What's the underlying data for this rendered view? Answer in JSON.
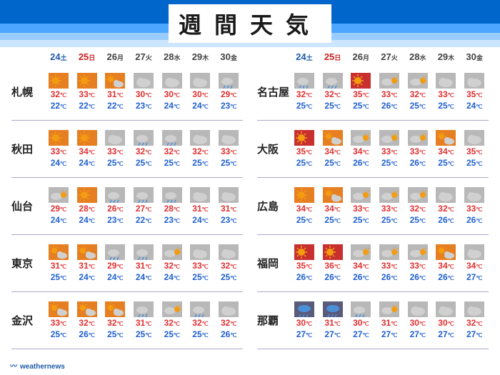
{
  "header": {
    "title": "週間天気"
  },
  "footer": {
    "brand": "weathernews"
  },
  "palette": {
    "sun_fill": "#f39c12",
    "sun_bg": "#e67e22",
    "cloud_fill": "#d0d0d0",
    "cloud_bg": "#b8b8b8",
    "rain_fill": "#4a90d9",
    "rain_bg": "#5a5a7a",
    "hot_bg": "#c83030"
  },
  "days": [
    {
      "num": "24",
      "sub": "土",
      "cls": "sat"
    },
    {
      "num": "25",
      "sub": "日",
      "cls": "sun"
    },
    {
      "num": "26",
      "sub": "月",
      "cls": "wd"
    },
    {
      "num": "27",
      "sub": "火",
      "cls": "wd"
    },
    {
      "num": "28",
      "sub": "水",
      "cls": "wd"
    },
    {
      "num": "29",
      "sub": "木",
      "cls": "wd"
    },
    {
      "num": "30",
      "sub": "金",
      "cls": "wd"
    }
  ],
  "columns": [
    {
      "cities": [
        {
          "name": "札幌",
          "fc": [
            {
              "ic": "sun",
              "hi": 32,
              "lo": 22
            },
            {
              "ic": "sun",
              "hi": 33,
              "lo": 22
            },
            {
              "ic": "sun-cloud",
              "hi": 31,
              "lo": 22
            },
            {
              "ic": "cloud",
              "hi": 30,
              "lo": 23
            },
            {
              "ic": "cloud",
              "hi": 30,
              "lo": 24
            },
            {
              "ic": "cloud",
              "hi": 30,
              "lo": 24
            },
            {
              "ic": "cloud-rain",
              "hi": 29,
              "lo": 23
            }
          ]
        },
        {
          "name": "秋田",
          "fc": [
            {
              "ic": "sun",
              "hi": 33,
              "lo": 24
            },
            {
              "ic": "sun",
              "hi": 34,
              "lo": 24
            },
            {
              "ic": "cloud",
              "hi": 33,
              "lo": 25
            },
            {
              "ic": "cloud-rain",
              "hi": 32,
              "lo": 25
            },
            {
              "ic": "cloud-rain",
              "hi": 32,
              "lo": 25
            },
            {
              "ic": "cloud",
              "hi": 32,
              "lo": 25
            },
            {
              "ic": "cloud",
              "hi": 33,
              "lo": 25
            }
          ]
        },
        {
          "name": "仙台",
          "fc": [
            {
              "ic": "cloud-sun",
              "hi": 29,
              "lo": 24
            },
            {
              "ic": "sun",
              "hi": 28,
              "lo": 24
            },
            {
              "ic": "cloud-rain",
              "hi": 26,
              "lo": 23
            },
            {
              "ic": "cloud-rain",
              "hi": 27,
              "lo": 22
            },
            {
              "ic": "cloud-rain",
              "hi": 28,
              "lo": 23
            },
            {
              "ic": "cloud",
              "hi": 31,
              "lo": 24
            },
            {
              "ic": "cloud",
              "hi": 31,
              "lo": 23
            }
          ]
        },
        {
          "name": "東京",
          "fc": [
            {
              "ic": "sun-cloud",
              "hi": 31,
              "lo": 25
            },
            {
              "ic": "sun-cloud",
              "hi": 31,
              "lo": 24
            },
            {
              "ic": "cloud-rain",
              "hi": 29,
              "lo": 24
            },
            {
              "ic": "cloud-rain",
              "hi": 31,
              "lo": 24
            },
            {
              "ic": "cloud-sun",
              "hi": 32,
              "lo": 24
            },
            {
              "ic": "cloud",
              "hi": 33,
              "lo": 25
            },
            {
              "ic": "cloud",
              "hi": 32,
              "lo": 25
            }
          ]
        },
        {
          "name": "金沢",
          "fc": [
            {
              "ic": "sun-cloud",
              "hi": 33,
              "lo": 25
            },
            {
              "ic": "sun-cloud",
              "hi": 32,
              "lo": 26
            },
            {
              "ic": "sun-cloud",
              "hi": 32,
              "lo": 25
            },
            {
              "ic": "cloud-rain",
              "hi": 31,
              "lo": 25
            },
            {
              "ic": "cloud-sun",
              "hi": 32,
              "lo": 25
            },
            {
              "ic": "cloud-rain",
              "hi": 32,
              "lo": 25
            },
            {
              "ic": "cloud",
              "hi": 32,
              "lo": 26
            }
          ]
        }
      ]
    },
    {
      "cities": [
        {
          "name": "名古屋",
          "fc": [
            {
              "ic": "cloud-rain",
              "hi": 32,
              "lo": 25
            },
            {
              "ic": "cloud-rain",
              "hi": 32,
              "lo": 25
            },
            {
              "ic": "hot-sun",
              "hi": 35,
              "lo": 25
            },
            {
              "ic": "cloud-sun",
              "hi": 33,
              "lo": 26
            },
            {
              "ic": "cloud-sun",
              "hi": 32,
              "lo": 25
            },
            {
              "ic": "cloud",
              "hi": 33,
              "lo": 25
            },
            {
              "ic": "cloud",
              "hi": 35,
              "lo": 24
            }
          ]
        },
        {
          "name": "大阪",
          "fc": [
            {
              "ic": "hot-sun",
              "hi": 35,
              "lo": 25
            },
            {
              "ic": "sun-cloud",
              "hi": 34,
              "lo": 25
            },
            {
              "ic": "cloud-sun",
              "hi": 34,
              "lo": 26
            },
            {
              "ic": "cloud-sun",
              "hi": 33,
              "lo": 25
            },
            {
              "ic": "cloud-sun",
              "hi": 33,
              "lo": 26
            },
            {
              "ic": "sun-cloud",
              "hi": 34,
              "lo": 25
            },
            {
              "ic": "cloud",
              "hi": 35,
              "lo": 25
            }
          ]
        },
        {
          "name": "広島",
          "fc": [
            {
              "ic": "sun",
              "hi": 34,
              "lo": 25
            },
            {
              "ic": "sun-cloud",
              "hi": 34,
              "lo": 25
            },
            {
              "ic": "cloud-sun",
              "hi": 33,
              "lo": 25
            },
            {
              "ic": "cloud-sun",
              "hi": 33,
              "lo": 25
            },
            {
              "ic": "cloud-sun",
              "hi": 32,
              "lo": 25
            },
            {
              "ic": "cloud",
              "hi": 32,
              "lo": 26
            },
            {
              "ic": "cloud",
              "hi": 33,
              "lo": 26
            }
          ]
        },
        {
          "name": "福岡",
          "fc": [
            {
              "ic": "hot-sun",
              "hi": 35,
              "lo": 26
            },
            {
              "ic": "hot-sun",
              "hi": 36,
              "lo": 26
            },
            {
              "ic": "cloud-sun",
              "hi": 34,
              "lo": 26
            },
            {
              "ic": "cloud-sun",
              "hi": 33,
              "lo": 26
            },
            {
              "ic": "cloud-sun",
              "hi": 33,
              "lo": 26
            },
            {
              "ic": "sun-cloud",
              "hi": 34,
              "lo": 26
            },
            {
              "ic": "cloud",
              "hi": 34,
              "lo": 27
            }
          ]
        },
        {
          "name": "那覇",
          "fc": [
            {
              "ic": "rain",
              "hi": 30,
              "lo": 27
            },
            {
              "ic": "rain",
              "hi": 31,
              "lo": 27
            },
            {
              "ic": "cloud-rain",
              "hi": 30,
              "lo": 27
            },
            {
              "ic": "cloud-sun",
              "hi": 31,
              "lo": 27
            },
            {
              "ic": "cloud",
              "hi": 30,
              "lo": 27
            },
            {
              "ic": "cloud",
              "hi": 30,
              "lo": 27
            },
            {
              "ic": "cloud",
              "hi": 32,
              "lo": 27
            }
          ]
        }
      ]
    }
  ]
}
